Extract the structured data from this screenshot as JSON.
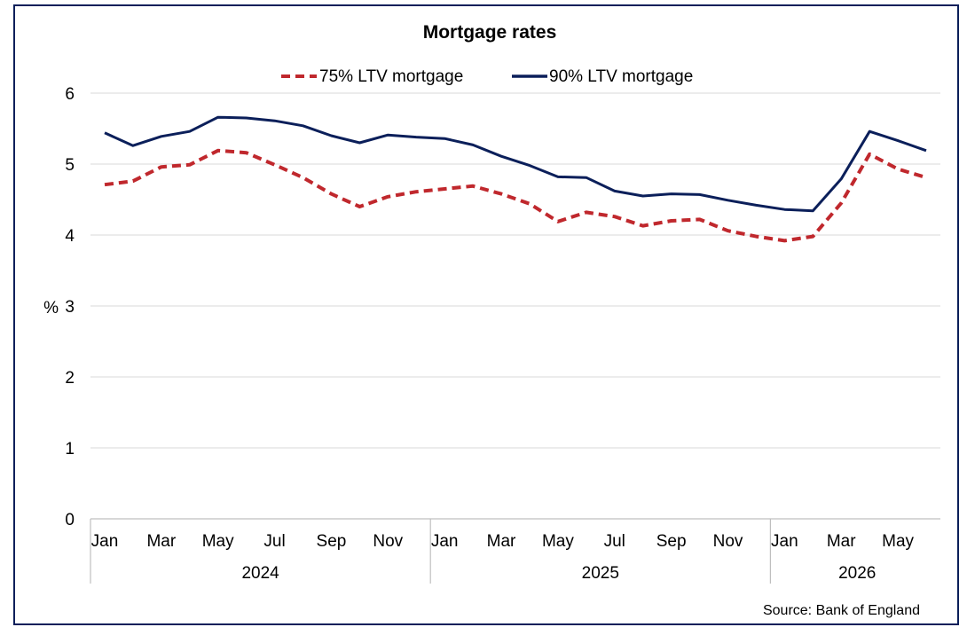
{
  "chart_data": {
    "type": "line",
    "title": "Mortgage rates",
    "ylabel": "%",
    "ylim": [
      0,
      6
    ],
    "yticks": [
      "0",
      "1",
      "2",
      "3",
      "4",
      "5",
      "6"
    ],
    "grid": true,
    "legend_position": "top",
    "x": [
      "Jan 2024",
      "Feb 2024",
      "Mar 2024",
      "Apr 2024",
      "May 2024",
      "Jun 2024",
      "Jul 2024",
      "Aug 2024",
      "Sep 2024",
      "Oct 2024",
      "Nov 2024",
      "Dec 2024",
      "Jan 2025",
      "Feb 2025",
      "Mar 2025",
      "Apr 2025",
      "May 2025",
      "Jun 2025",
      "Jul 2025",
      "Aug 2025",
      "Sep 2025",
      "Oct 2025",
      "Nov 2025",
      "Dec 2025",
      "Jan 2026",
      "Feb 2026",
      "Mar 2026",
      "Apr 2026",
      "May 2026",
      "Jun 2026"
    ],
    "month_labels": [
      "Jan",
      "Mar",
      "May",
      "Jul",
      "Sep",
      "Nov",
      "Jan",
      "Mar",
      "May",
      "Jul",
      "Sep",
      "Nov",
      "Jan",
      "Mar",
      "May"
    ],
    "year_labels": [
      "2024",
      "2025",
      "2026"
    ],
    "series": [
      {
        "name": "75% LTV mortgage",
        "color": "#c0282d",
        "style": "dashed",
        "values": [
          4.71,
          4.76,
          4.96,
          4.99,
          5.19,
          5.16,
          4.99,
          4.81,
          4.58,
          4.4,
          4.54,
          4.61,
          4.65,
          4.69,
          4.58,
          4.44,
          4.19,
          4.32,
          4.26,
          4.13,
          4.2,
          4.22,
          4.06,
          3.98,
          3.92,
          3.98,
          4.45,
          5.14,
          4.93,
          4.81
        ]
      },
      {
        "name": "90% LTV mortgage",
        "color": "#0b1f5a",
        "style": "solid",
        "values": [
          5.44,
          5.26,
          5.39,
          5.46,
          5.66,
          5.65,
          5.61,
          5.54,
          5.4,
          5.3,
          5.41,
          5.38,
          5.36,
          5.27,
          5.11,
          4.98,
          4.82,
          4.81,
          4.62,
          4.55,
          4.58,
          4.57,
          4.49,
          4.42,
          4.36,
          4.34,
          4.79,
          5.46,
          5.33,
          5.19
        ]
      }
    ],
    "source": "Source: Bank of England"
  }
}
